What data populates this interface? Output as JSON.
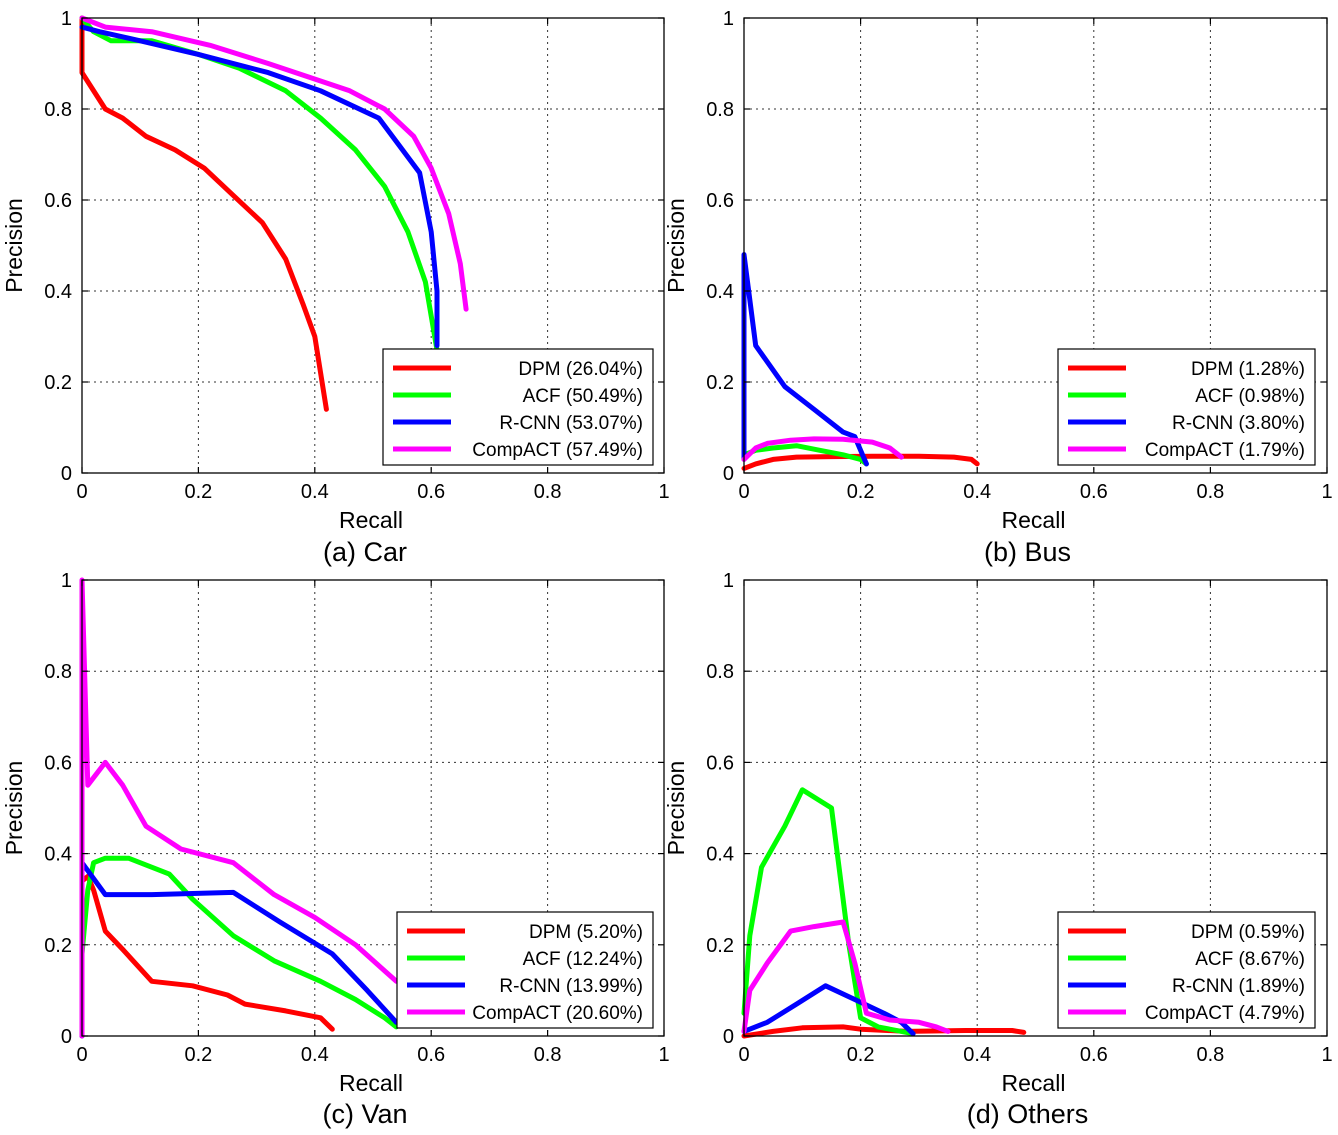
{
  "chart_data": [
    {
      "type": "line",
      "caption": "(a) Car",
      "xlabel": "Recall",
      "ylabel": "Precision",
      "xlim": [
        0,
        1
      ],
      "ylim": [
        0,
        1
      ],
      "xticks": [
        "0",
        "0.2",
        "0.4",
        "0.6",
        "0.8",
        "1"
      ],
      "yticks": [
        "0",
        "0.2",
        "0.4",
        "0.6",
        "0.8",
        "1"
      ],
      "grid": true,
      "legend_position": "bottom-right",
      "series": [
        {
          "name": "DPM (26.04%)",
          "color": "#ff0000",
          "x": [
            0,
            0,
            0.04,
            0.07,
            0.11,
            0.16,
            0.21,
            0.26,
            0.31,
            0.35,
            0.38,
            0.4,
            0.41,
            0.42
          ],
          "y": [
            1.0,
            0.88,
            0.8,
            0.78,
            0.74,
            0.71,
            0.67,
            0.61,
            0.55,
            0.47,
            0.37,
            0.3,
            0.22,
            0.14
          ]
        },
        {
          "name": "ACF (50.49%)",
          "color": "#00ff00",
          "x": [
            0,
            0.02,
            0.05,
            0.12,
            0.2,
            0.27,
            0.35,
            0.41,
            0.47,
            0.52,
            0.56,
            0.59,
            0.61
          ],
          "y": [
            1.0,
            0.97,
            0.95,
            0.95,
            0.92,
            0.89,
            0.84,
            0.78,
            0.71,
            0.63,
            0.53,
            0.42,
            0.27
          ]
        },
        {
          "name": "R-CNN (53.07%)",
          "color": "#0000ff",
          "x": [
            0,
            0.03,
            0.1,
            0.2,
            0.32,
            0.41,
            0.51,
            0.58,
            0.6,
            0.61,
            0.61
          ],
          "y": [
            0.98,
            0.97,
            0.95,
            0.92,
            0.88,
            0.84,
            0.78,
            0.66,
            0.53,
            0.4,
            0.28
          ]
        },
        {
          "name": "CompACT (57.49%)",
          "color": "#ff00ff",
          "x": [
            0,
            0.04,
            0.12,
            0.22,
            0.32,
            0.39,
            0.46,
            0.52,
            0.57,
            0.6,
            0.63,
            0.65,
            0.66
          ],
          "y": [
            1.0,
            0.98,
            0.97,
            0.94,
            0.9,
            0.87,
            0.84,
            0.8,
            0.74,
            0.67,
            0.57,
            0.46,
            0.36
          ]
        }
      ]
    },
    {
      "type": "line",
      "caption": "(b) Bus",
      "xlabel": "Recall",
      "ylabel": "Precision",
      "xlim": [
        0,
        1
      ],
      "ylim": [
        0,
        1
      ],
      "xticks": [
        "0",
        "0.2",
        "0.4",
        "0.6",
        "0.8",
        "1"
      ],
      "yticks": [
        "0",
        "0.2",
        "0.4",
        "0.6",
        "0.8",
        "1"
      ],
      "grid": true,
      "legend_position": "bottom-right",
      "series": [
        {
          "name": "DPM (1.28%)",
          "color": "#ff0000",
          "x": [
            0,
            0.02,
            0.05,
            0.09,
            0.15,
            0.22,
            0.3,
            0.36,
            0.39,
            0.4
          ],
          "y": [
            0.01,
            0.02,
            0.03,
            0.035,
            0.036,
            0.037,
            0.037,
            0.035,
            0.03,
            0.02
          ]
        },
        {
          "name": "ACF (0.98%)",
          "color": "#00ff00",
          "x": [
            0,
            0.02,
            0.05,
            0.09,
            0.13,
            0.17,
            0.2,
            0.21
          ],
          "y": [
            0.04,
            0.05,
            0.055,
            0.06,
            0.05,
            0.04,
            0.03,
            0.02
          ]
        },
        {
          "name": "R-CNN (3.80%)",
          "color": "#0000ff",
          "x": [
            0,
            0,
            0.02,
            0.07,
            0.12,
            0.17,
            0.19,
            0.2,
            0.21
          ],
          "y": [
            0.03,
            0.48,
            0.28,
            0.19,
            0.14,
            0.09,
            0.08,
            0.05,
            0.02
          ]
        },
        {
          "name": "CompACT (1.79%)",
          "color": "#ff00ff",
          "x": [
            0,
            0.02,
            0.04,
            0.08,
            0.12,
            0.17,
            0.22,
            0.25,
            0.27
          ],
          "y": [
            0.03,
            0.055,
            0.065,
            0.072,
            0.075,
            0.074,
            0.068,
            0.055,
            0.035
          ]
        }
      ]
    },
    {
      "type": "line",
      "caption": "(c) Van",
      "xlabel": "Recall",
      "ylabel": "Precision",
      "xlim": [
        0,
        1
      ],
      "ylim": [
        0,
        1
      ],
      "xticks": [
        "0",
        "0.2",
        "0.4",
        "0.6",
        "0.8",
        "1"
      ],
      "yticks": [
        "0",
        "0.2",
        "0.4",
        "0.6",
        "0.8",
        "1"
      ],
      "grid": true,
      "legend_position": "bottom-right",
      "series": [
        {
          "name": "DPM (5.20%)",
          "color": "#ff0000",
          "x": [
            0,
            0,
            0.01,
            0.02,
            0.04,
            0.07,
            0.12,
            0.19,
            0.25,
            0.28,
            0.35,
            0.41,
            0.43
          ],
          "y": [
            0.0,
            0.34,
            0.35,
            0.32,
            0.23,
            0.19,
            0.12,
            0.11,
            0.09,
            0.07,
            0.055,
            0.04,
            0.015
          ]
        },
        {
          "name": "ACF (12.24%)",
          "color": "#00ff00",
          "x": [
            0,
            0.01,
            0.02,
            0.04,
            0.08,
            0.15,
            0.19,
            0.26,
            0.33,
            0.41,
            0.47,
            0.52,
            0.54
          ],
          "y": [
            0.18,
            0.32,
            0.38,
            0.39,
            0.39,
            0.355,
            0.3,
            0.22,
            0.165,
            0.12,
            0.08,
            0.04,
            0.02
          ]
        },
        {
          "name": "R-CNN (13.99%)",
          "color": "#0000ff",
          "x": [
            0,
            0,
            0.04,
            0.12,
            0.26,
            0.34,
            0.43,
            0.49,
            0.54
          ],
          "y": [
            0.0,
            0.38,
            0.31,
            0.31,
            0.315,
            0.25,
            0.18,
            0.1,
            0.03
          ]
        },
        {
          "name": "CompACT (20.60%)",
          "color": "#ff00ff",
          "x": [
            0,
            0,
            0.01,
            0.04,
            0.07,
            0.11,
            0.17,
            0.26,
            0.33,
            0.4,
            0.47,
            0.54
          ],
          "y": [
            0.0,
            1.0,
            0.55,
            0.6,
            0.55,
            0.46,
            0.41,
            0.38,
            0.31,
            0.26,
            0.2,
            0.12
          ]
        }
      ]
    },
    {
      "type": "line",
      "caption": "(d) Others",
      "xlabel": "Recall",
      "ylabel": "Precision",
      "xlim": [
        0,
        1
      ],
      "ylim": [
        0,
        1
      ],
      "xticks": [
        "0",
        "0.2",
        "0.4",
        "0.6",
        "0.8",
        "1"
      ],
      "yticks": [
        "0",
        "0.2",
        "0.4",
        "0.6",
        "0.8",
        "1"
      ],
      "grid": true,
      "legend_position": "bottom-right",
      "series": [
        {
          "name": "DPM (0.59%)",
          "color": "#ff0000",
          "x": [
            0,
            0.05,
            0.1,
            0.17,
            0.2,
            0.28,
            0.38,
            0.46,
            0.48
          ],
          "y": [
            0.0,
            0.01,
            0.018,
            0.02,
            0.015,
            0.01,
            0.012,
            0.012,
            0.008
          ]
        },
        {
          "name": "ACF (8.67%)",
          "color": "#00ff00",
          "x": [
            0,
            0.01,
            0.03,
            0.07,
            0.1,
            0.15,
            0.18,
            0.2,
            0.23,
            0.27,
            0.29
          ],
          "y": [
            0.05,
            0.22,
            0.37,
            0.46,
            0.54,
            0.5,
            0.2,
            0.04,
            0.02,
            0.01,
            0.005
          ]
        },
        {
          "name": "R-CNN (1.89%)",
          "color": "#0000ff",
          "x": [
            0,
            0.04,
            0.09,
            0.14,
            0.19,
            0.24,
            0.27,
            0.29
          ],
          "y": [
            0.01,
            0.03,
            0.07,
            0.11,
            0.08,
            0.05,
            0.03,
            0.005
          ]
        },
        {
          "name": "CompACT (4.79%)",
          "color": "#ff00ff",
          "x": [
            0,
            0.01,
            0.04,
            0.08,
            0.12,
            0.17,
            0.19,
            0.21,
            0.25,
            0.3,
            0.33,
            0.35
          ],
          "y": [
            0.01,
            0.1,
            0.16,
            0.23,
            0.24,
            0.25,
            0.16,
            0.05,
            0.035,
            0.03,
            0.02,
            0.01
          ]
        }
      ]
    }
  ]
}
